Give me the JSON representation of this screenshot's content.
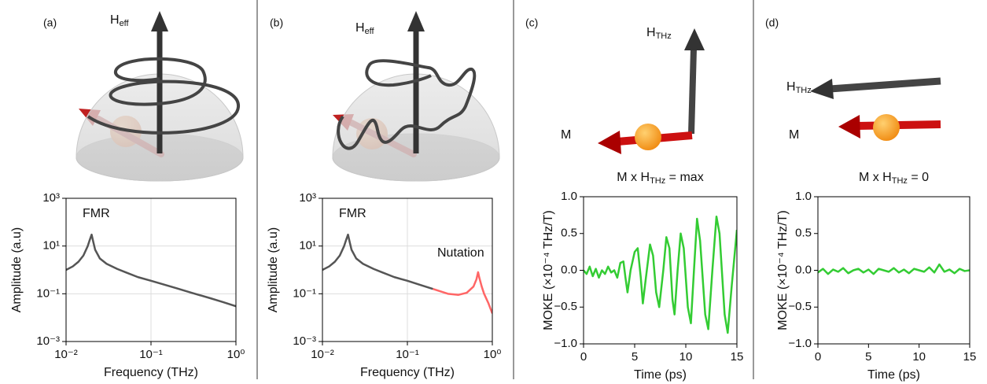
{
  "panels": [
    {
      "label": "(a)",
      "field_label": [
        "H",
        "eff"
      ]
    },
    {
      "label": "(b)",
      "field_label": [
        "H",
        "eff"
      ]
    },
    {
      "label": "(c)",
      "field_label": [
        "H",
        "THz"
      ],
      "m_label": "M"
    },
    {
      "label": "(d)",
      "field_label": [
        "H",
        "THz"
      ],
      "m_label": "M"
    }
  ],
  "chart_data": [
    {
      "type": "line",
      "ylabel": "Amplitude (a.u)",
      "xlabel": "Frequency (THz)",
      "xscale": "log",
      "yscale": "log",
      "xlim": [
        0.01,
        1
      ],
      "ylim": [
        0.001,
        1000
      ],
      "xticks": [
        {
          "value": 0.01,
          "label": "10⁻²"
        },
        {
          "value": 0.1,
          "label": "10⁻¹"
        },
        {
          "value": 1,
          "label": "10⁰"
        }
      ],
      "yticks": [
        {
          "value": 0.001,
          "label": "10⁻³"
        },
        {
          "value": 0.1,
          "label": "10⁻¹"
        },
        {
          "value": 10,
          "label": "10¹"
        },
        {
          "value": 1000,
          "label": "10³"
        }
      ],
      "grid": true,
      "annotations": [
        {
          "text": "FMR",
          "color": "#222222"
        }
      ],
      "x": [
        0.01,
        0.012,
        0.014,
        0.016,
        0.018,
        0.019,
        0.02,
        0.021,
        0.022,
        0.025,
        0.03,
        0.04,
        0.05,
        0.07,
        0.1,
        0.2,
        0.3,
        0.5,
        0.7,
        1
      ],
      "series": [
        {
          "color": "#555555",
          "values": [
            1.0,
            1.4,
            2.2,
            4,
            10,
            18,
            30,
            14,
            7,
            3,
            1.8,
            1.1,
            0.8,
            0.5,
            0.35,
            0.17,
            0.11,
            0.065,
            0.045,
            0.03
          ]
        }
      ]
    },
    {
      "type": "line",
      "ylabel": "Amplitude (a.u)",
      "xlabel": "Frequency (THz)",
      "xscale": "log",
      "yscale": "log",
      "xlim": [
        0.01,
        1
      ],
      "ylim": [
        0.001,
        1000
      ],
      "xticks": [
        {
          "value": 0.01,
          "label": "10⁻²"
        },
        {
          "value": 0.1,
          "label": "10⁻¹"
        },
        {
          "value": 1,
          "label": "10⁰"
        }
      ],
      "yticks": [
        {
          "value": 0.001,
          "label": "10⁻³"
        },
        {
          "value": 0.1,
          "label": "10⁻¹"
        },
        {
          "value": 10,
          "label": "10¹"
        },
        {
          "value": 1000,
          "label": "10³"
        }
      ],
      "grid": true,
      "annotations": [
        {
          "text": "FMR",
          "color": "#222222"
        },
        {
          "text": "Nutation",
          "color": "#ff3333"
        }
      ],
      "x": [
        0.01,
        0.012,
        0.014,
        0.016,
        0.018,
        0.019,
        0.02,
        0.021,
        0.022,
        0.025,
        0.03,
        0.04,
        0.05,
        0.07,
        0.1,
        0.15,
        0.2,
        0.3,
        0.4,
        0.5,
        0.6,
        0.65,
        0.68,
        0.7,
        0.75,
        0.8,
        0.9,
        1
      ],
      "series": [
        {
          "color": "#555555",
          "values": [
            1.0,
            1.4,
            2.2,
            4,
            10,
            18,
            30,
            14,
            7,
            3,
            1.8,
            1.1,
            0.8,
            0.5,
            0.35,
            0.22,
            0.16,
            null,
            null,
            null,
            null,
            null,
            null,
            null,
            null,
            null,
            null,
            null
          ]
        },
        {
          "color": "#ff6666",
          "values": [
            null,
            null,
            null,
            null,
            null,
            null,
            null,
            null,
            null,
            null,
            null,
            null,
            null,
            null,
            null,
            null,
            0.16,
            0.1,
            0.09,
            0.11,
            0.2,
            0.4,
            0.8,
            0.5,
            0.2,
            0.1,
            0.04,
            0.015
          ]
        }
      ]
    },
    {
      "type": "line",
      "title_parts": [
        "M x H",
        "THz",
        " = max"
      ],
      "ylabel": "MOKE (×10⁻⁴ THz/T)",
      "xlabel": "Time (ps)",
      "xlim": [
        0,
        15
      ],
      "ylim": [
        -1,
        1
      ],
      "xticks": [
        0,
        5,
        10,
        15
      ],
      "yticks": [
        {
          "value": -1,
          "label": "−1.0"
        },
        {
          "value": -0.5,
          "label": "−0.5"
        },
        {
          "value": 0,
          "label": "0.0"
        },
        0.5,
        {
          "value": 1,
          "label": "1.0"
        }
      ],
      "grid": false,
      "x": [
        0,
        0.3,
        0.6,
        0.9,
        1.2,
        1.5,
        1.8,
        2.1,
        2.4,
        2.7,
        3.0,
        3.3,
        3.6,
        3.9,
        4.1,
        4.3,
        4.6,
        5.0,
        5.3,
        5.6,
        5.8,
        6.1,
        6.5,
        6.8,
        7.1,
        7.4,
        7.8,
        8.1,
        8.4,
        8.7,
        8.9,
        9.2,
        9.5,
        9.8,
        10.2,
        10.5,
        10.8,
        11.1,
        11.4,
        11.9,
        12.2,
        12.6,
        13.0,
        13.3,
        13.8,
        14.1,
        14.5,
        15
      ],
      "series": [
        {
          "color": "#33cc33",
          "values": [
            0.0,
            -0.05,
            0.05,
            -0.08,
            0.02,
            -0.1,
            0.0,
            -0.05,
            0.05,
            -0.03,
            0.0,
            -0.1,
            0.1,
            0.12,
            -0.1,
            -0.3,
            0.0,
            0.25,
            0.3,
            -0.1,
            -0.45,
            -0.1,
            0.35,
            0.2,
            -0.3,
            -0.5,
            0.0,
            0.45,
            0.3,
            -0.4,
            -0.6,
            0.0,
            0.5,
            0.3,
            -0.5,
            -0.72,
            0.0,
            0.7,
            0.4,
            -0.6,
            -0.8,
            0.0,
            0.73,
            0.5,
            -0.6,
            -0.85,
            -0.2,
            0.55
          ]
        }
      ]
    },
    {
      "type": "line",
      "title_parts": [
        "M x H",
        "THz",
        " = 0"
      ],
      "ylabel": "MOKE (×10⁻⁴ THz/T)",
      "xlabel": "Time (ps)",
      "xlim": [
        0,
        15
      ],
      "ylim": [
        -1,
        1
      ],
      "xticks": [
        0,
        5,
        10,
        15
      ],
      "yticks": [
        {
          "value": -1,
          "label": "−1.0"
        },
        {
          "value": -0.5,
          "label": "−0.5"
        },
        {
          "value": 0,
          "label": "0.0"
        },
        0.5,
        {
          "value": 1,
          "label": "1.0"
        }
      ],
      "grid": false,
      "x": [
        0,
        0.5,
        1,
        1.5,
        2,
        2.5,
        3,
        3.5,
        4,
        4.5,
        5,
        5.5,
        6,
        6.5,
        7,
        7.5,
        8,
        8.5,
        9,
        9.5,
        10,
        10.5,
        11,
        11.5,
        12,
        12.5,
        13,
        13.5,
        14,
        14.5,
        15
      ],
      "series": [
        {
          "color": "#33cc33",
          "values": [
            -0.03,
            0.02,
            -0.05,
            0.01,
            -0.02,
            0.03,
            -0.04,
            0.0,
            0.02,
            -0.03,
            0.01,
            -0.05,
            0.02,
            0.0,
            -0.02,
            0.03,
            -0.03,
            0.01,
            -0.04,
            0.02,
            0.0,
            -0.02,
            0.04,
            -0.03,
            0.08,
            -0.02,
            0.01,
            -0.04,
            0.02,
            -0.01,
            0.0
          ]
        }
      ]
    }
  ]
}
